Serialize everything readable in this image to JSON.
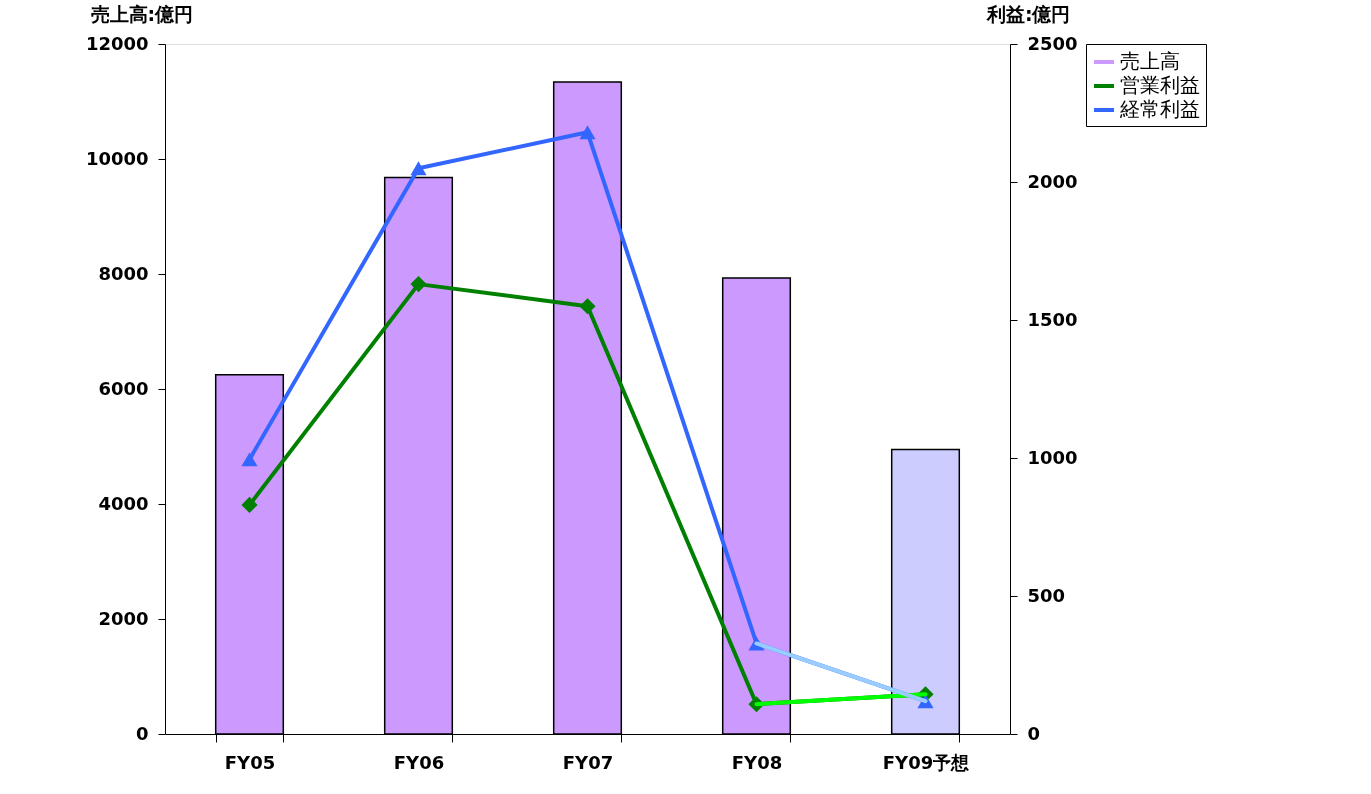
{
  "chart_data": {
    "type": "bar",
    "ylabel": "売上高:億円",
    "y2label": "利益:億円",
    "categories": [
      "FY05",
      "FY06",
      "FY07",
      "FY08",
      "FY09予想"
    ],
    "series": [
      {
        "name": "売上高",
        "color": "#cc99ff",
        "colors": [
          "#cc99ff",
          "#cc99ff",
          "#cc99ff",
          "#cc99ff",
          "#ccccff"
        ],
        "values": [
          6250,
          9680,
          11340,
          7930,
          4950
        ]
      },
      {
        "name": "営業利益",
        "type": "line",
        "axis": "y2",
        "color": "#008000",
        "marker": "diamond",
        "values": [
          830,
          1630,
          1550,
          108,
          144
        ]
      },
      {
        "name": "経常利益",
        "type": "line",
        "axis": "y2",
        "color": "#3366ff",
        "marker": "triangle",
        "values": [
          995,
          2050,
          2180,
          328,
          119
        ]
      },
      {
        "type": "line",
        "axis": "y2",
        "color": "#00ff00",
        "values": [
          null,
          null,
          null,
          108,
          144
        ]
      },
      {
        "type": "line",
        "axis": "y2",
        "color": "#99ccff",
        "values": [
          null,
          null,
          null,
          328,
          119
        ]
      }
    ],
    "ylim": [
      0,
      12000
    ],
    "yticks": [
      0,
      2000,
      4000,
      6000,
      8000,
      10000,
      12000
    ],
    "y2lim": [
      0,
      2500
    ],
    "y2ticks": [
      0,
      500,
      1000,
      1500,
      2000,
      2500
    ],
    "grid": false,
    "legend": "right"
  }
}
